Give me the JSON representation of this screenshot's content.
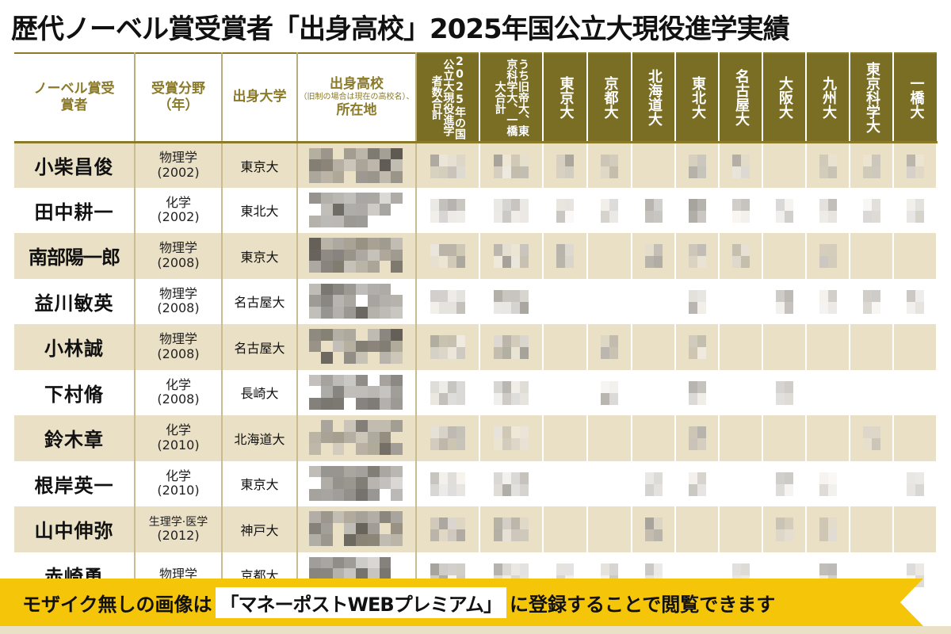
{
  "title": "歴代ノーベル賞受賞者「出身高校」2025年国公立大現役進学実績",
  "headers": {
    "laureate": "ノーベル賞受賞者",
    "field_year": "受賞分野（年）",
    "university": "出身大学",
    "high_school_title": "出身高校",
    "high_school_note": "（旧制の場合は現在の高校名）、",
    "high_school_location": "所在地",
    "total_national": "2025年の国公立大現役進学者数合計",
    "subtotal_former_imperial": "うち旧帝大、東京科学大、一橋大合計",
    "univ_columns": [
      "東京大",
      "京都大",
      "北海道大",
      "東北大",
      "名古屋大",
      "大阪大",
      "九州大",
      "東京科学大",
      "一橋大"
    ]
  },
  "rows": [
    {
      "name": "小柴昌俊",
      "field": "物理学",
      "year": "(2002)",
      "univ": "東京大"
    },
    {
      "name": "田中耕一",
      "field": "化学",
      "year": "(2002)",
      "univ": "東北大"
    },
    {
      "name": "南部陽一郎",
      "field": "物理学",
      "year": "(2008)",
      "univ": "東京大"
    },
    {
      "name": "益川敏英",
      "field": "物理学",
      "year": "(2008)",
      "univ": "名古屋大"
    },
    {
      "name": "小林誠",
      "field": "物理学",
      "year": "(2008)",
      "univ": "名古屋大"
    },
    {
      "name": "下村脩",
      "field": "化学",
      "year": "(2008)",
      "univ": "長崎大"
    },
    {
      "name": "鈴木章",
      "field": "化学",
      "year": "(2010)",
      "univ": "北海道大"
    },
    {
      "name": "根岸英一",
      "field": "化学",
      "year": "(2010)",
      "univ": "東京大"
    },
    {
      "name": "山中伸弥",
      "field": "生理学·医学",
      "year": "(2012)",
      "univ": "神戸大"
    },
    {
      "name": "赤崎勇",
      "field": "物理学",
      "year": "",
      "univ": "京都大"
    }
  ],
  "banner": {
    "prefix": "モザイク無しの画像は",
    "brand": "「マネーポストWEBプレミアム」",
    "suffix": "に登録することで閲覧できます"
  },
  "colors": {
    "header_gold": "#8a7a2a",
    "header_dark": "#7a6d24",
    "row_beige": "#eae0c6",
    "banner_yellow": "#f5c50a"
  }
}
